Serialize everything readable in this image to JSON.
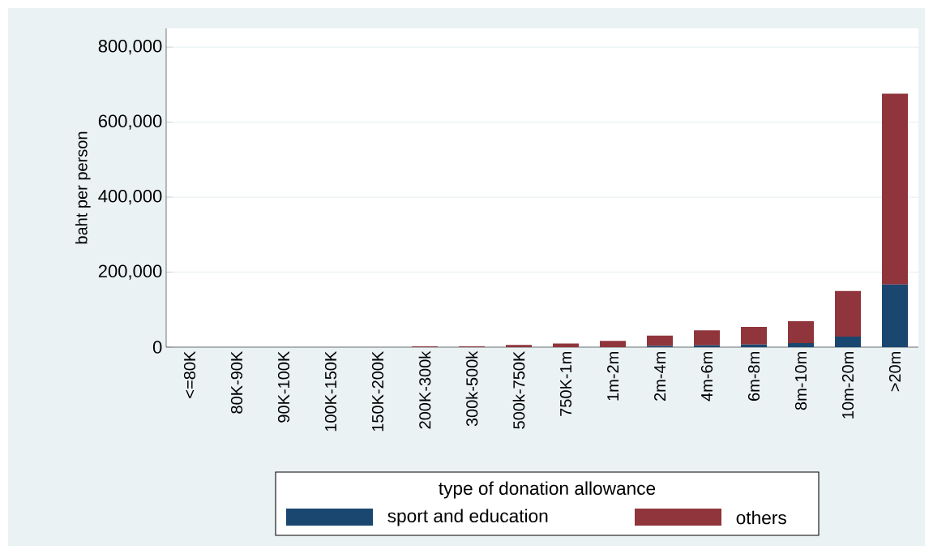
{
  "chart_data": {
    "type": "bar",
    "stacked": true,
    "ylabel": "baht per person",
    "legend_title": "type of donation allowance",
    "categories": [
      "<=80K",
      "80K-90K",
      "90K-100K",
      "100K-150K",
      "150K-200K",
      "200K-300k",
      "300k-500k",
      "500k-750K",
      "750K-1m",
      "1m-2m",
      "2m-4m",
      "4m-6m",
      "6m-8m",
      "8m-10m",
      "10m-20m",
      ">20m"
    ],
    "series": [
      {
        "name": "sport and education",
        "color": "#1a476f",
        "values": [
          0,
          0,
          0,
          0,
          0,
          0,
          0,
          0,
          0,
          0,
          3000,
          5000,
          7000,
          11000,
          28000,
          167000
        ]
      },
      {
        "name": "others",
        "color": "#90353b",
        "values": [
          0,
          0,
          0,
          0,
          0,
          2000,
          2000,
          6000,
          10000,
          17000,
          28000,
          40000,
          47000,
          58000,
          122000,
          509000
        ]
      }
    ],
    "ylim": [
      0,
      850000
    ],
    "yticks": [
      0,
      {
        "value": 200000,
        "label": "200,000"
      },
      {
        "value": 400000,
        "label": "400,000"
      },
      {
        "value": 600000,
        "label": "600,000"
      },
      {
        "value": 800000,
        "label": "800,000"
      }
    ],
    "grid": "y",
    "legend": "bottom"
  }
}
